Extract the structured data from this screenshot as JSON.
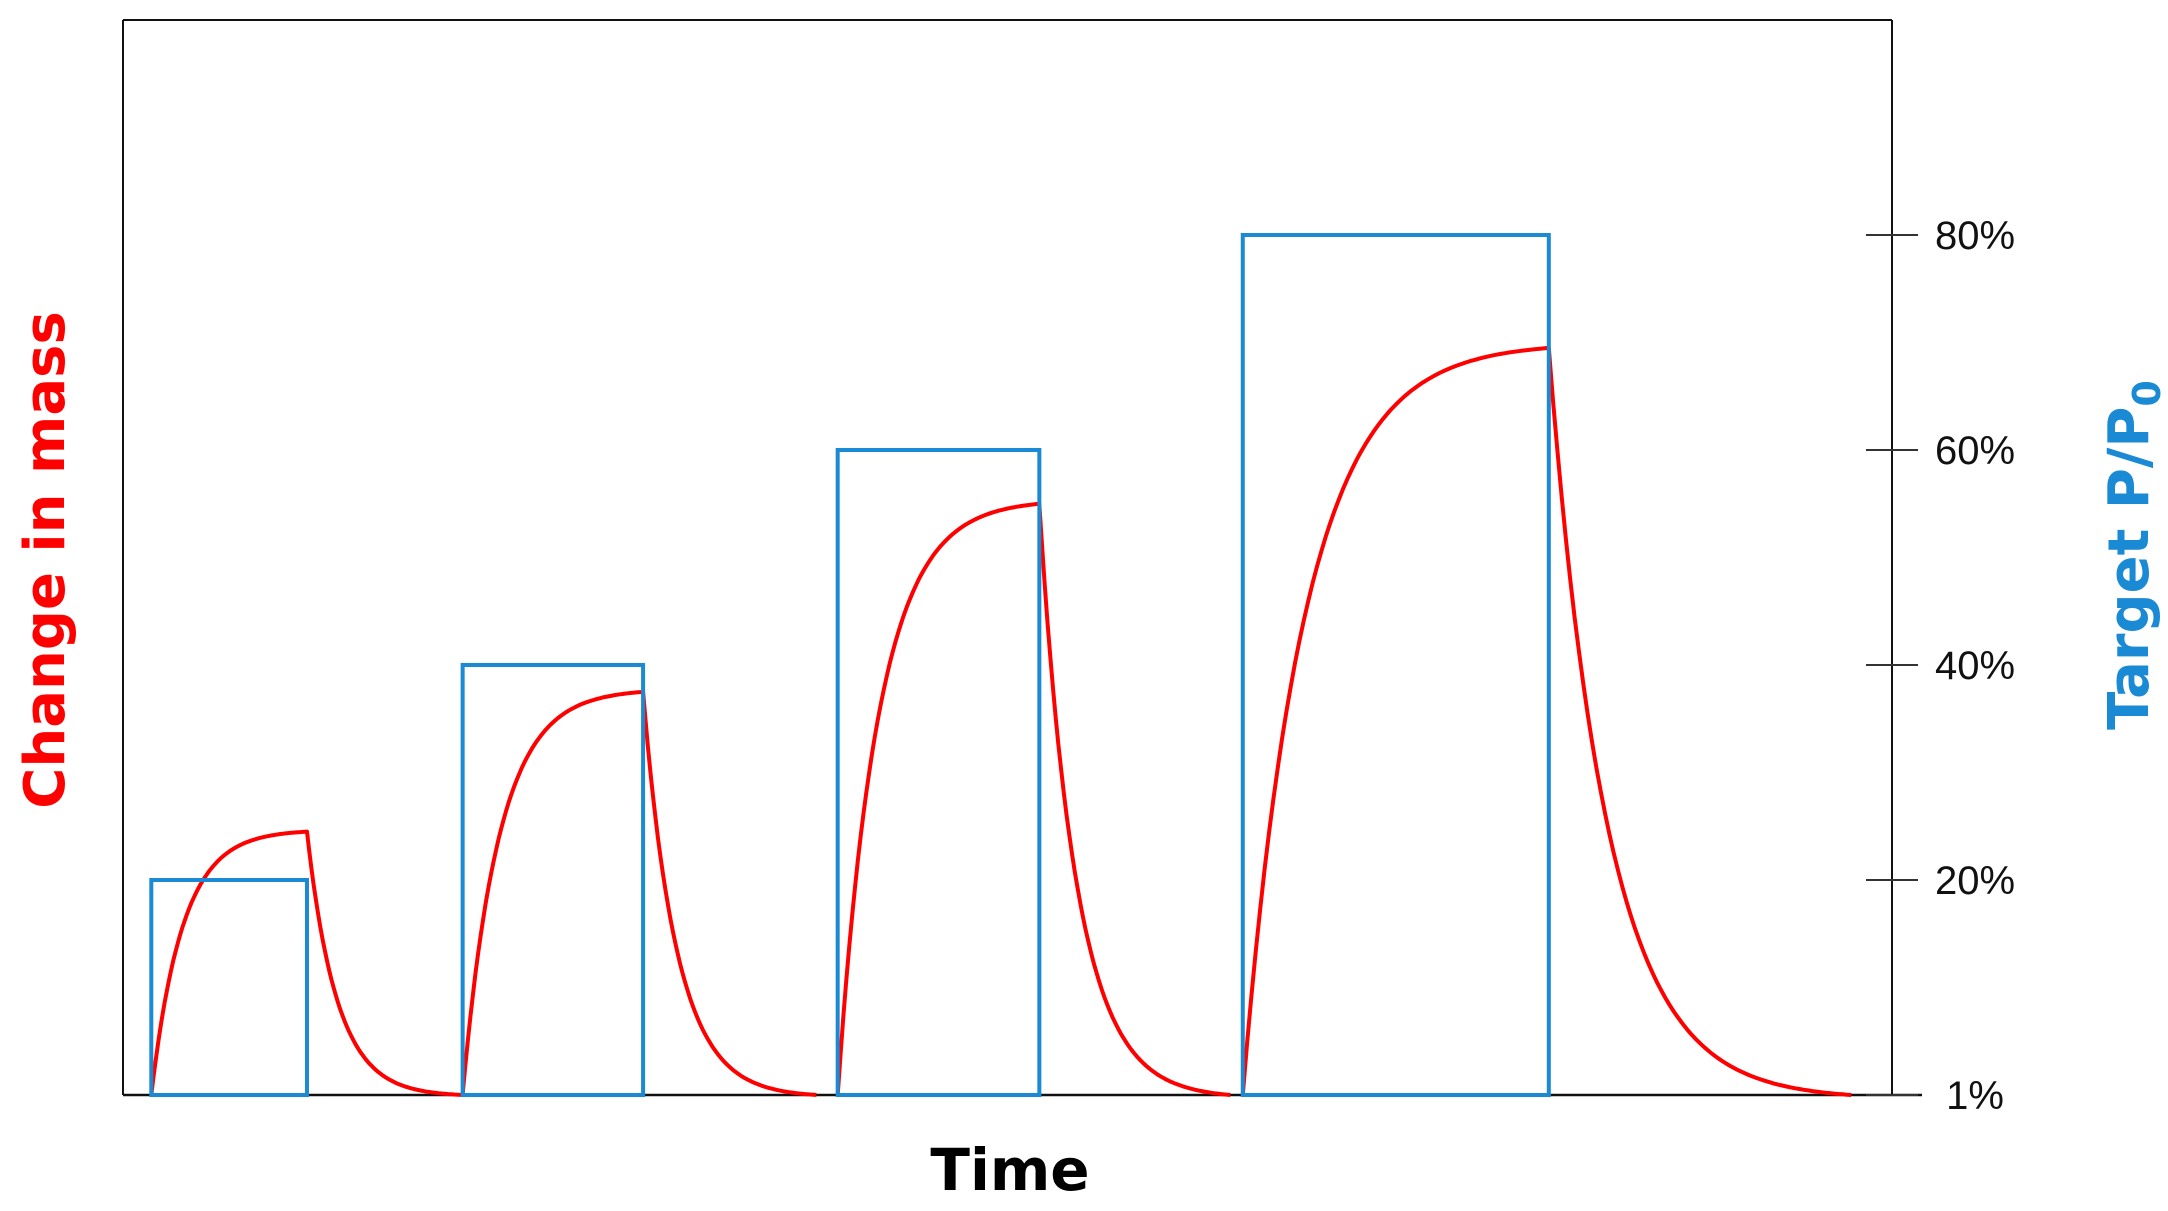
{
  "chart_data": {
    "type": "line",
    "title": "",
    "xlabel": "Time",
    "ylabel_left": "Change in mass",
    "ylabel_right": "Target P/P",
    "ylabel_right_subscript": "0",
    "ylim_right": [
      0,
      100
    ],
    "x_range": [
      0,
      100
    ],
    "grid": false,
    "legend": "none",
    "right_ticks": [
      {
        "value": 1,
        "label": "1%"
      },
      {
        "value": 20,
        "label": "20%"
      },
      {
        "value": 40,
        "label": "40%"
      },
      {
        "value": 60,
        "label": "60%"
      },
      {
        "value": 80,
        "label": "80%"
      }
    ],
    "series": [
      {
        "color": "#1a8ad4",
        "steps": [
          {
            "start": 1.6,
            "end": 10.4,
            "level": 20
          },
          {
            "start": 19.2,
            "end": 29.4,
            "level": 40
          },
          {
            "start": 40.4,
            "end": 51.8,
            "level": 60
          },
          {
            "start": 63.3,
            "end": 80.6,
            "level": 80
          }
        ]
      },
      {
        "color": "#ff0000",
        "cycles": [
          {
            "rise_start": 1.6,
            "peak_time": 10.4,
            "peak": 24.5,
            "fall_end": 19.2
          },
          {
            "rise_start": 19.2,
            "peak_time": 29.4,
            "peak": 37.5,
            "fall_end": 39.2
          },
          {
            "rise_start": 40.4,
            "peak_time": 51.8,
            "peak": 55.0,
            "fall_end": 62.6
          },
          {
            "rise_start": 63.3,
            "peak_time": 80.6,
            "peak": 69.5,
            "fall_end": 97.7
          }
        ]
      }
    ]
  }
}
